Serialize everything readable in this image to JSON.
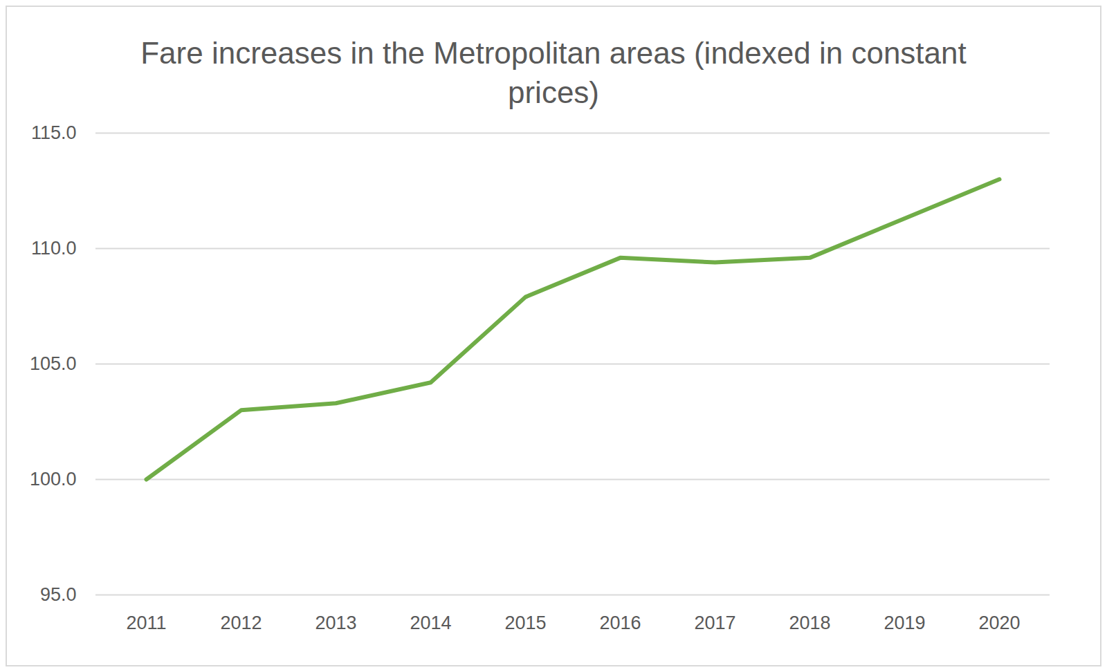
{
  "chart_data": {
    "type": "line",
    "title": "Fare increases in the Metropolitan areas (indexed in constant prices)",
    "categories": [
      "2011",
      "2012",
      "2013",
      "2014",
      "2015",
      "2016",
      "2017",
      "2018",
      "2019",
      "2020"
    ],
    "values": [
      100.0,
      103.0,
      103.3,
      104.2,
      107.9,
      109.6,
      109.4,
      109.6,
      111.3,
      113.0
    ],
    "color": "#70ad47",
    "ylim": [
      95,
      115
    ],
    "yticks": [
      {
        "value": 95,
        "label": "95.0"
      },
      {
        "value": 100,
        "label": "100.0"
      },
      {
        "value": 105,
        "label": "105.0"
      },
      {
        "value": 110,
        "label": "110.0"
      },
      {
        "value": 115,
        "label": "115.0"
      }
    ],
    "grid": true
  }
}
